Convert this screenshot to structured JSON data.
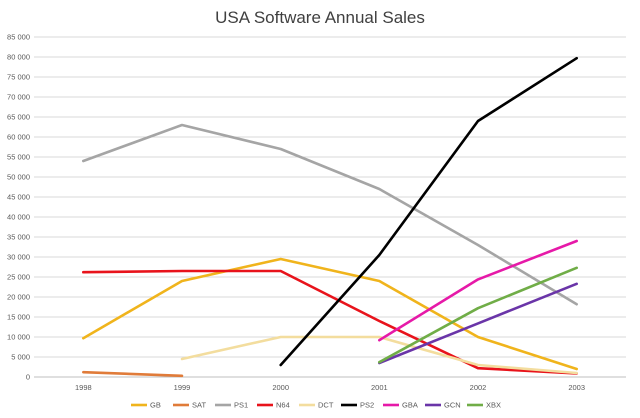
{
  "chart_data": {
    "type": "line",
    "title": "USA Software Annual Sales",
    "xlabel": "",
    "ylabel": "",
    "categories": [
      "1998",
      "1999",
      "2000",
      "2001",
      "2002",
      "2003"
    ],
    "ylim": [
      0,
      85000
    ],
    "y_ticks": [
      0,
      5000,
      10000,
      15000,
      20000,
      25000,
      30000,
      35000,
      40000,
      45000,
      50000,
      55000,
      60000,
      65000,
      70000,
      75000,
      80000,
      85000
    ],
    "y_tick_labels": [
      "0",
      "5 000",
      "10 000",
      "15 000",
      "20 000",
      "25 000",
      "30 000",
      "35 000",
      "40 000",
      "45 000",
      "50 000",
      "55 000",
      "60 000",
      "65 000",
      "70 000",
      "75 000",
      "80 000",
      "85 000"
    ],
    "grid": true,
    "legend": "bottom",
    "series": [
      {
        "name": "GB",
        "color": "#f0b41c",
        "values": [
          9700,
          24000,
          29500,
          24000,
          10000,
          2000
        ]
      },
      {
        "name": "SAT",
        "color": "#e07b39",
        "values": [
          1200,
          300,
          null,
          null,
          null,
          null
        ]
      },
      {
        "name": "PS1",
        "color": "#a5a5a5",
        "values": [
          54000,
          63000,
          57000,
          47000,
          33000,
          18200
        ]
      },
      {
        "name": "N64",
        "color": "#e8131b",
        "values": [
          26200,
          26500,
          26500,
          14000,
          2200,
          900
        ]
      },
      {
        "name": "DCT",
        "color": "#f3dd9e",
        "values": [
          null,
          4500,
          10000,
          10000,
          3000,
          1000
        ]
      },
      {
        "name": "PS2",
        "color": "#000000",
        "values": [
          null,
          null,
          3000,
          30500,
          64000,
          79700
        ]
      },
      {
        "name": "GBA",
        "color": "#e619a8",
        "values": [
          null,
          null,
          null,
          9200,
          24400,
          34000
        ]
      },
      {
        "name": "GCN",
        "color": "#6a35a8",
        "values": [
          null,
          null,
          null,
          3500,
          13400,
          23300
        ]
      },
      {
        "name": "XBX",
        "color": "#70ad47",
        "values": [
          null,
          null,
          null,
          3700,
          17200,
          27300
        ]
      }
    ]
  }
}
